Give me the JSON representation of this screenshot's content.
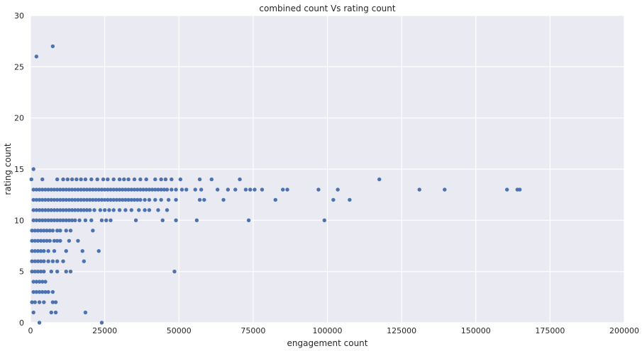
{
  "chart_data": {
    "type": "scatter",
    "title": "combined count Vs rating count",
    "xlabel": "engagement count",
    "ylabel": "rating count",
    "xlim": [
      0,
      200000
    ],
    "ylim": [
      0,
      30
    ],
    "x_ticks": [
      "0",
      "25000",
      "50000",
      "75000",
      "100000",
      "125000",
      "150000",
      "175000",
      "200000"
    ],
    "y_ticks": [
      "0",
      "5",
      "10",
      "15",
      "20",
      "25",
      "30"
    ],
    "grid": true,
    "background": "#eaeaf2",
    "marker_color": "#4c72b0",
    "points": [
      [
        1000,
        15
      ],
      [
        300,
        14
      ],
      [
        4000,
        14
      ],
      [
        9000,
        14
      ],
      [
        11000,
        14
      ],
      [
        12500,
        14
      ],
      [
        14000,
        14
      ],
      [
        15500,
        14
      ],
      [
        17000,
        14
      ],
      [
        18500,
        14
      ],
      [
        20500,
        14
      ],
      [
        22500,
        14
      ],
      [
        24500,
        14
      ],
      [
        26000,
        14
      ],
      [
        28000,
        14
      ],
      [
        30000,
        14
      ],
      [
        31500,
        14
      ],
      [
        33000,
        14
      ],
      [
        35000,
        14
      ],
      [
        37000,
        14
      ],
      [
        39000,
        14
      ],
      [
        42000,
        14
      ],
      [
        44000,
        14
      ],
      [
        45500,
        14
      ],
      [
        47500,
        14
      ],
      [
        50500,
        14
      ],
      [
        57000,
        14
      ],
      [
        61000,
        14
      ],
      [
        70500,
        14
      ],
      [
        117500,
        14
      ],
      [
        1000,
        13
      ],
      [
        2000,
        13
      ],
      [
        3000,
        13
      ],
      [
        4000,
        13
      ],
      [
        5000,
        13
      ],
      [
        6000,
        13
      ],
      [
        7000,
        13
      ],
      [
        8000,
        13
      ],
      [
        9000,
        13
      ],
      [
        10000,
        13
      ],
      [
        11000,
        13
      ],
      [
        12000,
        13
      ],
      [
        13000,
        13
      ],
      [
        14000,
        13
      ],
      [
        15000,
        13
      ],
      [
        16000,
        13
      ],
      [
        17000,
        13
      ],
      [
        18000,
        13
      ],
      [
        19000,
        13
      ],
      [
        20000,
        13
      ],
      [
        21000,
        13
      ],
      [
        22000,
        13
      ],
      [
        23000,
        13
      ],
      [
        24000,
        13
      ],
      [
        25000,
        13
      ],
      [
        26000,
        13
      ],
      [
        27000,
        13
      ],
      [
        28000,
        13
      ],
      [
        29000,
        13
      ],
      [
        30000,
        13
      ],
      [
        31000,
        13
      ],
      [
        32000,
        13
      ],
      [
        33000,
        13
      ],
      [
        34000,
        13
      ],
      [
        35000,
        13
      ],
      [
        36000,
        13
      ],
      [
        37000,
        13
      ],
      [
        38000,
        13
      ],
      [
        39000,
        13
      ],
      [
        40000,
        13
      ],
      [
        41000,
        13
      ],
      [
        42000,
        13
      ],
      [
        43000,
        13
      ],
      [
        44000,
        13
      ],
      [
        45000,
        13
      ],
      [
        46000,
        13
      ],
      [
        47500,
        13
      ],
      [
        49000,
        13
      ],
      [
        51000,
        13
      ],
      [
        52500,
        13
      ],
      [
        55500,
        13
      ],
      [
        57500,
        13
      ],
      [
        63000,
        13
      ],
      [
        66500,
        13
      ],
      [
        69000,
        13
      ],
      [
        72500,
        13
      ],
      [
        74000,
        13
      ],
      [
        75500,
        13
      ],
      [
        78000,
        13
      ],
      [
        85000,
        13
      ],
      [
        86500,
        13
      ],
      [
        97000,
        13
      ],
      [
        103500,
        13
      ],
      [
        131000,
        13
      ],
      [
        139500,
        13
      ],
      [
        160500,
        13
      ],
      [
        164000,
        13
      ],
      [
        164800,
        13
      ],
      [
        1000,
        12
      ],
      [
        2000,
        12
      ],
      [
        3000,
        12
      ],
      [
        4000,
        12
      ],
      [
        5000,
        12
      ],
      [
        6000,
        12
      ],
      [
        7000,
        12
      ],
      [
        8000,
        12
      ],
      [
        9000,
        12
      ],
      [
        10000,
        12
      ],
      [
        11000,
        12
      ],
      [
        12000,
        12
      ],
      [
        13000,
        12
      ],
      [
        14000,
        12
      ],
      [
        15000,
        12
      ],
      [
        16000,
        12
      ],
      [
        17000,
        12
      ],
      [
        18000,
        12
      ],
      [
        19000,
        12
      ],
      [
        20000,
        12
      ],
      [
        21000,
        12
      ],
      [
        22000,
        12
      ],
      [
        23000,
        12
      ],
      [
        24000,
        12
      ],
      [
        25000,
        12
      ],
      [
        26000,
        12
      ],
      [
        27000,
        12
      ],
      [
        28000,
        12
      ],
      [
        29000,
        12
      ],
      [
        30000,
        12
      ],
      [
        31000,
        12
      ],
      [
        32000,
        12
      ],
      [
        33000,
        12
      ],
      [
        34000,
        12
      ],
      [
        35000,
        12
      ],
      [
        36000,
        12
      ],
      [
        37000,
        12
      ],
      [
        38500,
        12
      ],
      [
        40000,
        12
      ],
      [
        42000,
        12
      ],
      [
        44000,
        12
      ],
      [
        46500,
        12
      ],
      [
        49000,
        12
      ],
      [
        57000,
        12
      ],
      [
        58500,
        12
      ],
      [
        65000,
        12
      ],
      [
        82500,
        12
      ],
      [
        102000,
        12
      ],
      [
        107500,
        12
      ],
      [
        1000,
        11
      ],
      [
        2000,
        11
      ],
      [
        3000,
        11
      ],
      [
        4000,
        11
      ],
      [
        5000,
        11
      ],
      [
        6000,
        11
      ],
      [
        7000,
        11
      ],
      [
        8000,
        11
      ],
      [
        9000,
        11
      ],
      [
        10000,
        11
      ],
      [
        11000,
        11
      ],
      [
        12000,
        11
      ],
      [
        13000,
        11
      ],
      [
        14000,
        11
      ],
      [
        15000,
        11
      ],
      [
        16000,
        11
      ],
      [
        17000,
        11
      ],
      [
        18000,
        11
      ],
      [
        19000,
        11
      ],
      [
        20000,
        11
      ],
      [
        21500,
        11
      ],
      [
        23500,
        11
      ],
      [
        25000,
        11
      ],
      [
        26500,
        11
      ],
      [
        28000,
        11
      ],
      [
        30000,
        11
      ],
      [
        32000,
        11
      ],
      [
        34000,
        11
      ],
      [
        36500,
        11
      ],
      [
        38500,
        11
      ],
      [
        40000,
        11
      ],
      [
        43000,
        11
      ],
      [
        46000,
        11
      ],
      [
        1000,
        10
      ],
      [
        2000,
        10
      ],
      [
        3000,
        10
      ],
      [
        4000,
        10
      ],
      [
        5000,
        10
      ],
      [
        6000,
        10
      ],
      [
        7000,
        10
      ],
      [
        8000,
        10
      ],
      [
        9000,
        10
      ],
      [
        10000,
        10
      ],
      [
        11000,
        10
      ],
      [
        12000,
        10
      ],
      [
        13000,
        10
      ],
      [
        14000,
        10
      ],
      [
        15000,
        10
      ],
      [
        16500,
        10
      ],
      [
        18500,
        10
      ],
      [
        20500,
        10
      ],
      [
        24000,
        10
      ],
      [
        25500,
        10
      ],
      [
        27000,
        10
      ],
      [
        35500,
        10
      ],
      [
        44500,
        10
      ],
      [
        49000,
        10
      ],
      [
        56000,
        10
      ],
      [
        73500,
        10
      ],
      [
        99000,
        10
      ],
      [
        500,
        9
      ],
      [
        1500,
        9
      ],
      [
        2500,
        9
      ],
      [
        3500,
        9
      ],
      [
        4500,
        9
      ],
      [
        5500,
        9
      ],
      [
        6500,
        9
      ],
      [
        7500,
        9
      ],
      [
        9000,
        9
      ],
      [
        10000,
        9
      ],
      [
        12000,
        9
      ],
      [
        13500,
        9
      ],
      [
        21000,
        9
      ],
      [
        500,
        8
      ],
      [
        1500,
        8
      ],
      [
        2500,
        8
      ],
      [
        3500,
        8
      ],
      [
        4500,
        8
      ],
      [
        5500,
        8
      ],
      [
        6500,
        8
      ],
      [
        8000,
        8
      ],
      [
        9000,
        8
      ],
      [
        10000,
        8
      ],
      [
        13000,
        8
      ],
      [
        16000,
        8
      ],
      [
        500,
        7
      ],
      [
        1500,
        7
      ],
      [
        2500,
        7
      ],
      [
        3500,
        7
      ],
      [
        4500,
        7
      ],
      [
        6000,
        7
      ],
      [
        8000,
        7
      ],
      [
        12000,
        7
      ],
      [
        17500,
        7
      ],
      [
        23000,
        7
      ],
      [
        500,
        6
      ],
      [
        1500,
        6
      ],
      [
        2500,
        6
      ],
      [
        3500,
        6
      ],
      [
        4500,
        6
      ],
      [
        6000,
        6
      ],
      [
        7500,
        6
      ],
      [
        9000,
        6
      ],
      [
        11000,
        6
      ],
      [
        18000,
        6
      ],
      [
        500,
        5
      ],
      [
        1500,
        5
      ],
      [
        2500,
        5
      ],
      [
        3500,
        5
      ],
      [
        4500,
        5
      ],
      [
        7000,
        5
      ],
      [
        9000,
        5
      ],
      [
        12000,
        5
      ],
      [
        13500,
        5
      ],
      [
        48500,
        5
      ],
      [
        1000,
        4
      ],
      [
        2000,
        4
      ],
      [
        3000,
        4
      ],
      [
        4000,
        4
      ],
      [
        5000,
        4
      ],
      [
        1000,
        3
      ],
      [
        2000,
        3
      ],
      [
        3000,
        3
      ],
      [
        4000,
        3
      ],
      [
        5000,
        3
      ],
      [
        6000,
        3
      ],
      [
        7500,
        3
      ],
      [
        500,
        2
      ],
      [
        1500,
        2
      ],
      [
        3000,
        2
      ],
      [
        4500,
        2
      ],
      [
        7500,
        2
      ],
      [
        8500,
        2
      ],
      [
        1000,
        1
      ],
      [
        7000,
        1
      ],
      [
        8500,
        1
      ],
      [
        18500,
        1
      ],
      [
        3000,
        0
      ],
      [
        24000,
        0
      ],
      [
        2000,
        26
      ],
      [
        7500,
        27
      ]
    ]
  }
}
